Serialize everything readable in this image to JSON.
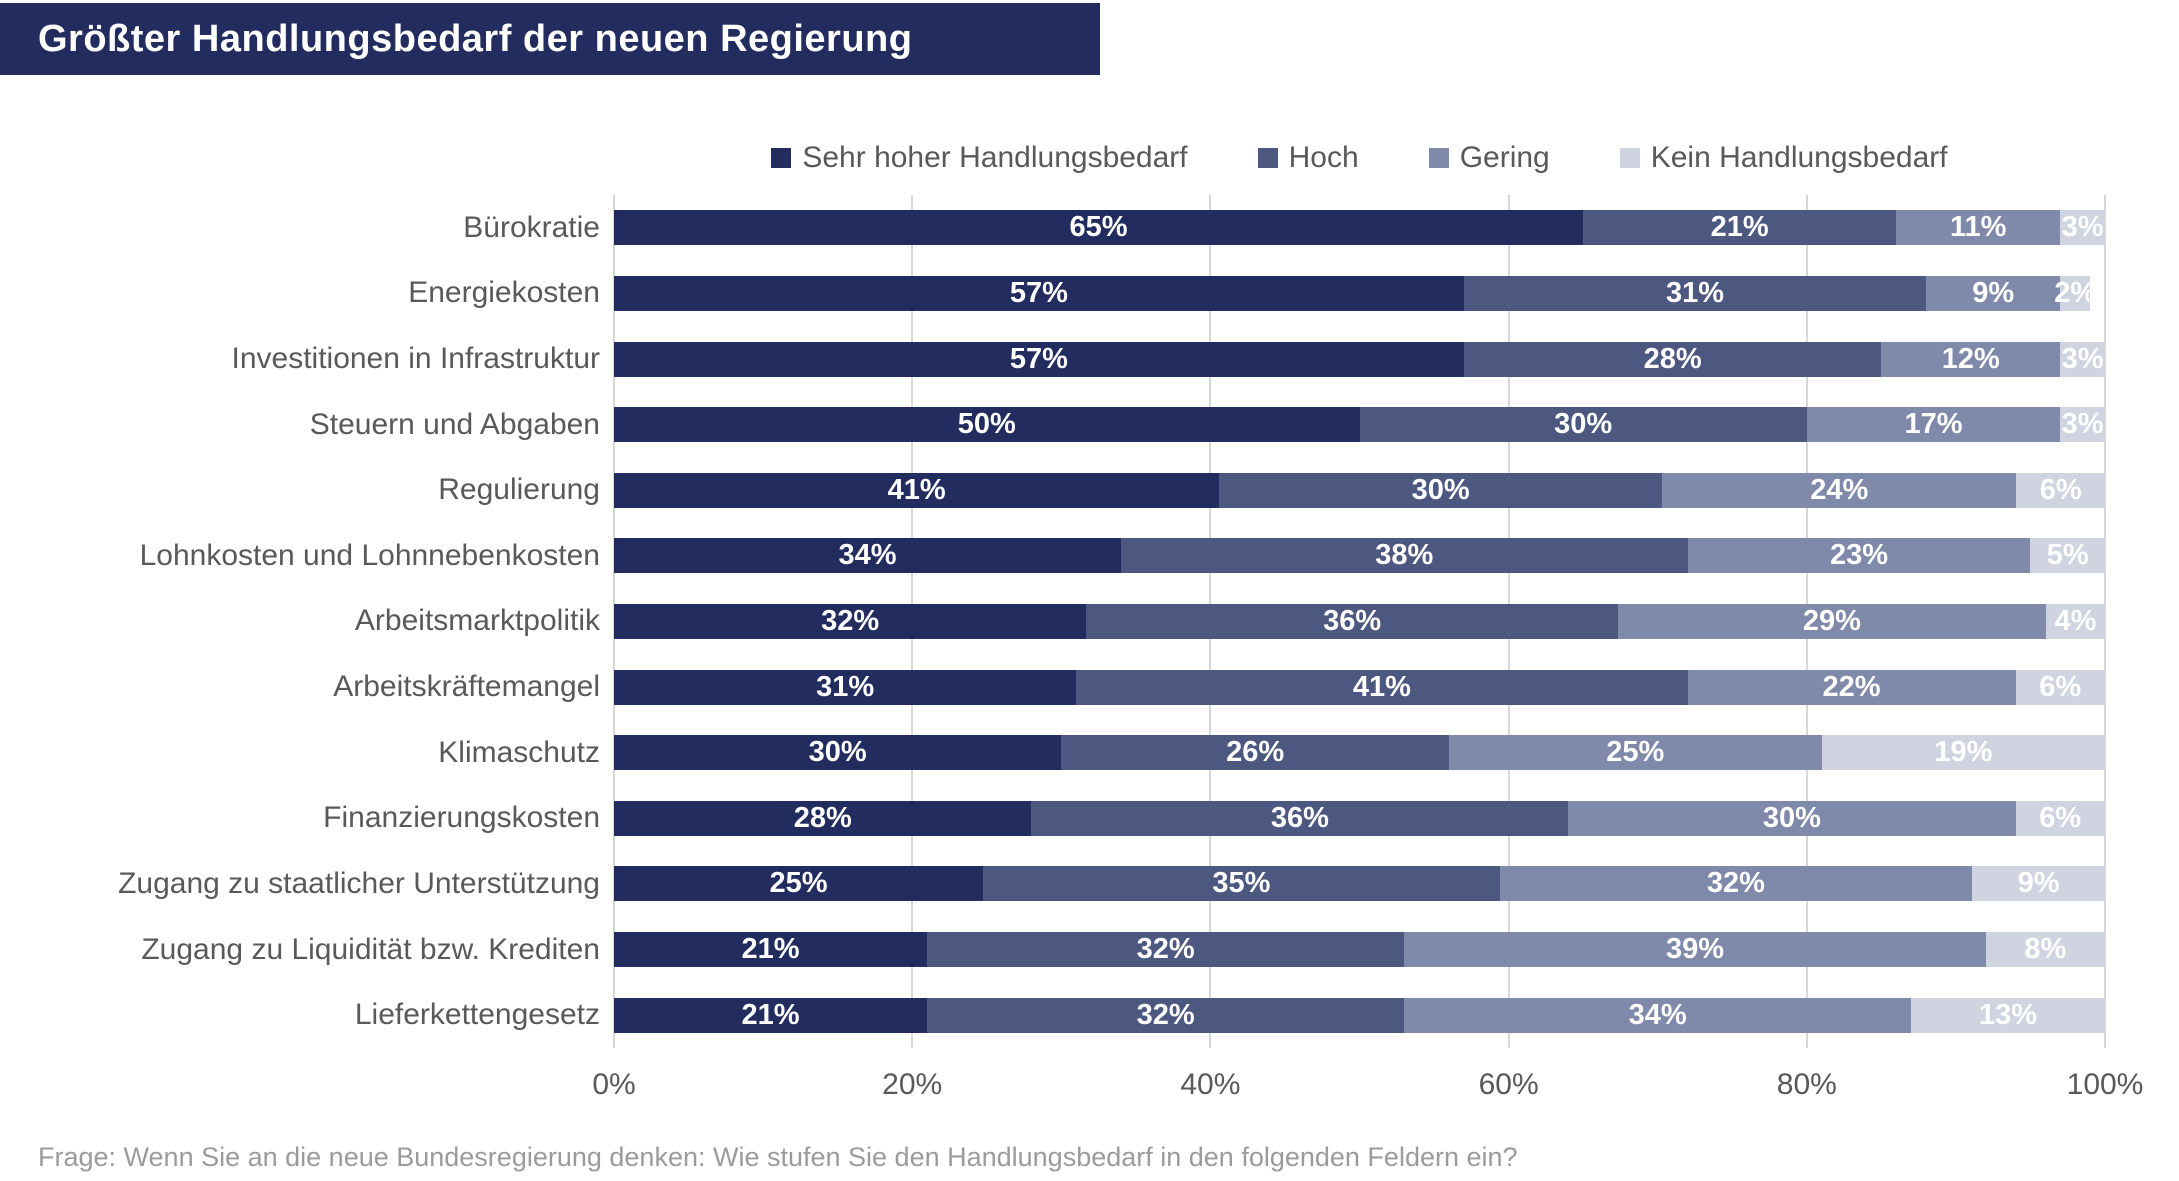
{
  "title": "Größter Handlungsbedarf der neuen Regierung",
  "footnote": "Frage: Wenn Sie an die neue Bundesregierung denken: Wie stufen Sie den Handlungsbedarf in den folgenden Feldern ein?",
  "colors": {
    "title_bar_bg": "#222C5E",
    "title_text": "#FFFFFF",
    "grid_line": "#D8D8D8",
    "axis_text": "#595959",
    "category_text": "#595959",
    "value_text": "#FFFFFF",
    "footnote_text": "#9B9B9B"
  },
  "chart_data": {
    "type": "bar",
    "orientation": "horizontal",
    "stacked": true,
    "title": "Größter Handlungsbedarf der neuen Regierung",
    "categories": [
      "Bürokratie",
      "Energiekosten",
      "Investitionen in Infrastruktur",
      "Steuern und Abgaben",
      "Regulierung",
      "Lohnkosten und Lohnnebenkosten",
      "Arbeitsmarktpolitik",
      "Arbeitskräftemangel",
      "Klimaschutz",
      "Finanzierungskosten",
      "Zugang zu staatlicher Unterstützung",
      "Zugang zu Liquidität bzw. Krediten",
      "Lieferkettengesetz"
    ],
    "series": [
      {
        "name": "Sehr hoher Handlungsbedarf",
        "color": "#222C5E",
        "values": [
          65,
          57,
          57,
          50,
          41,
          34,
          32,
          31,
          30,
          28,
          25,
          21,
          21
        ]
      },
      {
        "name": "Hoch",
        "color": "#4D5880",
        "values": [
          21,
          31,
          28,
          30,
          30,
          38,
          36,
          41,
          26,
          36,
          35,
          32,
          32
        ]
      },
      {
        "name": "Gering",
        "color": "#7F89A9",
        "values": [
          11,
          9,
          12,
          17,
          24,
          23,
          29,
          22,
          25,
          30,
          32,
          39,
          34
        ]
      },
      {
        "name": "Kein Handlungsbedarf",
        "color": "#D0D3E0",
        "values": [
          3,
          2,
          3,
          3,
          6,
          5,
          4,
          6,
          19,
          6,
          9,
          8,
          13
        ]
      }
    ],
    "xlim": [
      0,
      100
    ],
    "x_ticks": [
      0,
      20,
      40,
      60,
      80,
      100
    ],
    "x_tick_labels": [
      "0%",
      "20%",
      "40%",
      "60%",
      "80%",
      "100%"
    ],
    "value_suffix": "%",
    "legend_position": "top",
    "grid": "vertical"
  }
}
